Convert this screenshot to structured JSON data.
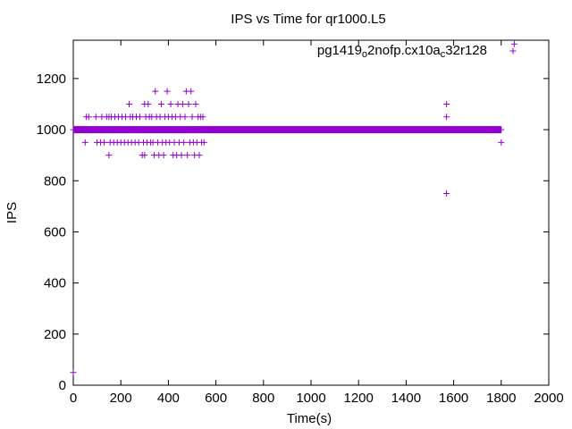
{
  "chart_data": {
    "type": "scatter",
    "title": "IPS vs Time for qr1000.L5",
    "xlabel": "Time(s)",
    "ylabel": "IPS",
    "xlim": [
      0,
      2000
    ],
    "ylim": [
      0,
      1350
    ],
    "xticks": [
      0,
      200,
      400,
      600,
      800,
      1000,
      1200,
      1400,
      1600,
      1800,
      2000
    ],
    "yticks": [
      0,
      200,
      400,
      600,
      800,
      1000,
      1200
    ],
    "grid": false,
    "legend_position": "top-right",
    "legend": {
      "parts": [
        {
          "t": "pg1419",
          "s": "normal"
        },
        {
          "t": "o",
          "s": "sub"
        },
        {
          "t": "2nofp.cx10a",
          "s": "normal"
        },
        {
          "t": "c",
          "s": "sub"
        },
        {
          "t": "32r128",
          "s": "normal"
        }
      ]
    },
    "series": [
      {
        "color": "#9400d3",
        "marker": "plus",
        "dense_band": {
          "y": 1000,
          "x_start": 0,
          "x_end": 1800
        },
        "points": [
          [
            0,
            50
          ],
          [
            50,
            950
          ],
          [
            55,
            1050
          ],
          [
            65,
            1050
          ],
          [
            95,
            1050
          ],
          [
            100,
            950
          ],
          [
            115,
            950
          ],
          [
            120,
            1050
          ],
          [
            130,
            950
          ],
          [
            140,
            1050
          ],
          [
            150,
            900
          ],
          [
            150,
            1050
          ],
          [
            155,
            950
          ],
          [
            160,
            1050
          ],
          [
            170,
            950
          ],
          [
            175,
            1050
          ],
          [
            185,
            950
          ],
          [
            190,
            1050
          ],
          [
            200,
            950
          ],
          [
            205,
            1050
          ],
          [
            215,
            950
          ],
          [
            220,
            1050
          ],
          [
            230,
            950
          ],
          [
            235,
            1100
          ],
          [
            240,
            1050
          ],
          [
            245,
            950
          ],
          [
            250,
            1050
          ],
          [
            260,
            950
          ],
          [
            265,
            1050
          ],
          [
            275,
            950
          ],
          [
            280,
            1050
          ],
          [
            290,
            900
          ],
          [
            295,
            950
          ],
          [
            300,
            1100
          ],
          [
            300,
            900
          ],
          [
            305,
            1050
          ],
          [
            310,
            950
          ],
          [
            315,
            1100
          ],
          [
            320,
            1050
          ],
          [
            325,
            950
          ],
          [
            330,
            1050
          ],
          [
            335,
            950
          ],
          [
            340,
            900
          ],
          [
            345,
            1150
          ],
          [
            350,
            1050
          ],
          [
            355,
            950
          ],
          [
            360,
            900
          ],
          [
            365,
            1050
          ],
          [
            370,
            1100
          ],
          [
            375,
            950
          ],
          [
            380,
            900
          ],
          [
            385,
            1050
          ],
          [
            390,
            950
          ],
          [
            395,
            1150
          ],
          [
            400,
            1050
          ],
          [
            405,
            950
          ],
          [
            410,
            1100
          ],
          [
            415,
            1050
          ],
          [
            420,
            900
          ],
          [
            425,
            950
          ],
          [
            430,
            1050
          ],
          [
            435,
            900
          ],
          [
            440,
            1100
          ],
          [
            445,
            950
          ],
          [
            450,
            1050
          ],
          [
            455,
            900
          ],
          [
            460,
            1100
          ],
          [
            465,
            950
          ],
          [
            470,
            1050
          ],
          [
            475,
            1150
          ],
          [
            480,
            900
          ],
          [
            485,
            1100
          ],
          [
            490,
            950
          ],
          [
            495,
            1150
          ],
          [
            500,
            1050
          ],
          [
            505,
            950
          ],
          [
            510,
            900
          ],
          [
            515,
            1100
          ],
          [
            520,
            950
          ],
          [
            525,
            1050
          ],
          [
            530,
            900
          ],
          [
            535,
            1050
          ],
          [
            540,
            950
          ],
          [
            545,
            1050
          ],
          [
            550,
            950
          ],
          [
            1570,
            1100
          ],
          [
            1570,
            1050
          ],
          [
            1570,
            750
          ],
          [
            1800,
            950
          ],
          [
            1855,
            1335
          ]
        ]
      }
    ]
  }
}
